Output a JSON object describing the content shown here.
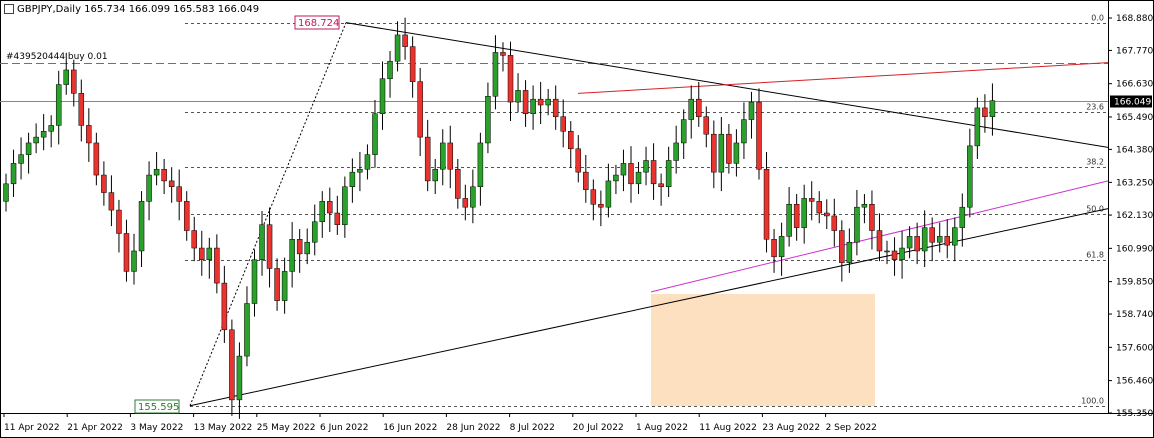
{
  "header": {
    "title": "GBPJPY,Daily  165.734 166.099 165.583 166.049",
    "order_label": "#439520444 buy 0.01"
  },
  "colors": {
    "bull": "#2ca02c",
    "bear": "#e8332f",
    "resistance_line": "#d2232a",
    "support_line": "#cc33cc",
    "trend_line": "#000000",
    "zone_fill": "#fde0c0",
    "order_line": "#2e9e2e",
    "grid": "#000000"
  },
  "chart_data": {
    "type": "candlestick",
    "symbol": "GBPJPY",
    "timeframe": "Daily",
    "ylim": [
      155.3,
      169.2
    ],
    "y_ticks": [
      "168.880",
      "167.770",
      "166.630",
      "165.490",
      "164.380",
      "163.250",
      "162.130",
      "160.990",
      "159.850",
      "158.740",
      "157.600",
      "156.460",
      "155.350"
    ],
    "x_labels": [
      "11 Apr 2022",
      "21 Apr 2022",
      "3 May 2022",
      "13 May 2022",
      "25 May 2022",
      "6 Jun 2022",
      "16 Jun 2022",
      "28 Jun 2022",
      "8 Jul 2022",
      "20 Jul 2022",
      "1 Aug 2022",
      "11 Aug 2022",
      "23 Aug 2022",
      "2 Sep 2022"
    ],
    "current_price": "166.049",
    "fib_levels": [
      {
        "label": "0.0",
        "price": 168.724
      },
      {
        "label": "23.6",
        "price": 165.66
      },
      {
        "label": "38.2",
        "price": 163.76
      },
      {
        "label": "50.0",
        "price": 162.16
      },
      {
        "label": "61.8",
        "price": 160.6
      },
      {
        "label": "100.0",
        "price": 155.595
      }
    ],
    "markers": {
      "high": "168.724",
      "low": "155.595"
    },
    "order_price": 167.35,
    "close": [
      163.2,
      163.9,
      164.2,
      164.6,
      164.8,
      165.0,
      165.2,
      166.6,
      167.1,
      166.3,
      165.2,
      164.6,
      163.5,
      162.9,
      162.3,
      161.5,
      160.2,
      160.9,
      162.6,
      163.5,
      163.7,
      163.3,
      163.1,
      162.6,
      161.6,
      161.0,
      160.6,
      161.0,
      159.8,
      158.2,
      155.8,
      157.3,
      159.1,
      160.6,
      161.8,
      160.3,
      159.2,
      160.2,
      161.3,
      160.8,
      161.2,
      161.9,
      162.6,
      162.2,
      161.8,
      163.1,
      163.6,
      163.7,
      164.2,
      165.6,
      166.8,
      167.4,
      168.3,
      167.9,
      166.7,
      164.8,
      163.3,
      163.7,
      164.6,
      163.7,
      162.7,
      162.4,
      163.1,
      164.6,
      166.2,
      167.7,
      167.6,
      166.0,
      166.4,
      165.6,
      166.1,
      165.9,
      166.1,
      165.5,
      165.0,
      164.4,
      163.6,
      163.0,
      162.5,
      162.4,
      163.3,
      163.5,
      163.9,
      163.2,
      163.6,
      164.0,
      163.2,
      163.1,
      164.0,
      164.6,
      165.4,
      166.1,
      165.5,
      164.9,
      163.6,
      164.9,
      163.9,
      164.6,
      165.4,
      166.0,
      163.7,
      161.3,
      160.7,
      161.4,
      162.5,
      161.7,
      162.7,
      162.6,
      162.2,
      162.1,
      161.6,
      160.5,
      161.2,
      162.4,
      162.5,
      161.6,
      160.9,
      160.9,
      160.6,
      161.0,
      161.4,
      160.9,
      161.7,
      161.2,
      161.4,
      161.1,
      161.7,
      162.4,
      164.5,
      165.8,
      165.5,
      166.049
    ]
  }
}
